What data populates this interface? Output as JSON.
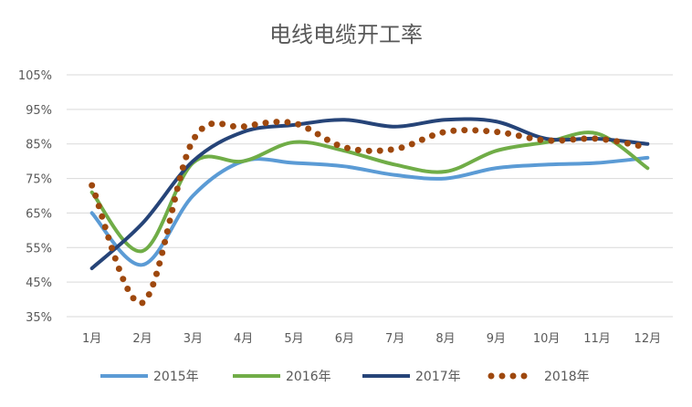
{
  "chart_data": {
    "type": "line",
    "title": "电线电缆开工率",
    "categories": [
      "1月",
      "2月",
      "3月",
      "4月",
      "5月",
      "6月",
      "7月",
      "8月",
      "9月",
      "10月",
      "11月",
      "12月"
    ],
    "yticks": [
      "35%",
      "45%",
      "55%",
      "65%",
      "75%",
      "85%",
      "95%",
      "105%"
    ],
    "ylim": [
      35,
      105
    ],
    "grid": true,
    "legend_position": "bottom",
    "series": [
      {
        "name": "2015年",
        "color": "#5B9BD5",
        "style": "solid",
        "values": [
          65,
          50,
          70,
          80,
          79.5,
          78.5,
          76,
          75,
          78,
          79,
          79.5,
          81
        ]
      },
      {
        "name": "2016年",
        "color": "#70AD47",
        "style": "solid",
        "values": [
          71,
          54,
          79.5,
          80,
          85.5,
          83,
          79,
          77,
          83,
          85.5,
          88,
          78
        ]
      },
      {
        "name": "2017年",
        "color": "#264478",
        "style": "solid",
        "values": [
          49,
          62,
          80,
          88.5,
          90.5,
          92,
          90,
          92,
          91.5,
          86.5,
          86.5,
          85
        ]
      },
      {
        "name": "2018年",
        "color": "#9E480E",
        "style": "dotted",
        "values": [
          73,
          39,
          86,
          90,
          91,
          84,
          83.5,
          88.5,
          88.5,
          86,
          86.5,
          84
        ]
      }
    ]
  }
}
